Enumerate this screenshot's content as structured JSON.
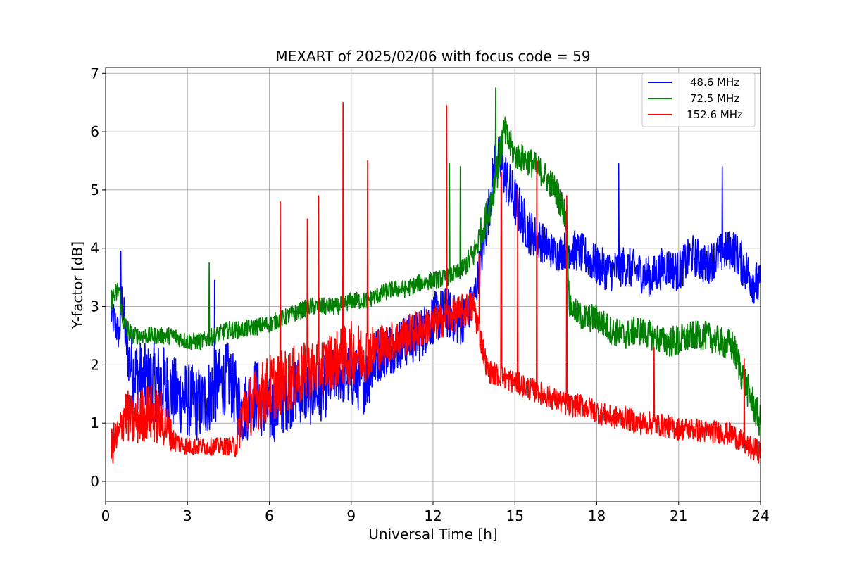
{
  "chart_data": {
    "type": "line",
    "title": "MEXART of 2025/02/06 with focus code = 59",
    "xlabel": "Universal Time [h]",
    "ylabel": "Y-factor [dB]",
    "xlim": [
      0,
      24
    ],
    "ylim": [
      -0.35,
      7.1
    ],
    "xticks": [
      0,
      3,
      6,
      9,
      12,
      15,
      18,
      21,
      24
    ],
    "yticks": [
      0,
      1,
      2,
      3,
      4,
      5,
      6,
      7
    ],
    "grid": true,
    "legend_position": "top-right",
    "series": [
      {
        "name": " 48.6 MHz",
        "color": "#0000ff",
        "x": [
          0.2,
          0.5,
          0.6,
          0.8,
          1.0,
          1.5,
          2.0,
          2.5,
          3.0,
          3.5,
          4.0,
          4.5,
          5.0,
          5.5,
          6.0,
          6.5,
          7.0,
          7.5,
          8.0,
          8.5,
          9.0,
          9.5,
          10.0,
          10.5,
          11.0,
          11.5,
          12.0,
          12.5,
          13.0,
          13.5,
          14.0,
          14.3,
          14.6,
          15.0,
          15.5,
          16.0,
          16.5,
          17.0,
          17.5,
          18.0,
          18.5,
          19.0,
          19.5,
          20.0,
          20.5,
          21.0,
          21.5,
          22.0,
          22.5,
          23.0,
          23.5,
          24.0
        ],
        "y": [
          2.9,
          2.5,
          3.1,
          2.2,
          1.9,
          1.7,
          1.7,
          1.5,
          1.4,
          1.3,
          1.6,
          1.8,
          1.2,
          1.5,
          1.2,
          1.4,
          1.6,
          1.5,
          1.6,
          1.9,
          1.8,
          1.7,
          2.2,
          2.3,
          2.4,
          2.5,
          2.8,
          2.9,
          2.7,
          3.1,
          4.5,
          5.6,
          5.3,
          4.8,
          4.3,
          4.1,
          3.9,
          4.0,
          3.9,
          3.7,
          3.6,
          3.7,
          3.6,
          3.5,
          3.7,
          3.6,
          3.9,
          3.7,
          3.9,
          4.0,
          3.6,
          3.3
        ],
        "noise": [
          0.35,
          0.3,
          0.4,
          0.45,
          0.6,
          0.65,
          0.7,
          0.65,
          0.65,
          0.65,
          0.65,
          0.6,
          0.6,
          0.65,
          0.6,
          0.6,
          0.6,
          0.55,
          0.55,
          0.55,
          0.55,
          0.55,
          0.5,
          0.45,
          0.45,
          0.45,
          0.45,
          0.45,
          0.4,
          0.35,
          0.4,
          0.45,
          0.45,
          0.45,
          0.4,
          0.35,
          0.3,
          0.35,
          0.35,
          0.35,
          0.35,
          0.35,
          0.35,
          0.35,
          0.35,
          0.35,
          0.35,
          0.35,
          0.35,
          0.35,
          0.4,
          0.4
        ]
      },
      {
        "name": " 72.5 MHz",
        "color": "#008000",
        "x": [
          0.2,
          0.5,
          0.6,
          0.8,
          1.0,
          1.5,
          2.0,
          2.5,
          3.0,
          3.5,
          4.0,
          4.5,
          5.0,
          5.5,
          6.0,
          6.5,
          7.0,
          7.5,
          8.0,
          8.5,
          9.0,
          9.5,
          10.0,
          10.5,
          11.0,
          11.5,
          12.0,
          12.5,
          13.0,
          13.5,
          14.0,
          14.3,
          14.6,
          15.0,
          15.5,
          16.0,
          16.5,
          16.9,
          17.0,
          17.5,
          18.0,
          18.5,
          19.0,
          19.5,
          20.0,
          20.5,
          21.0,
          21.5,
          22.0,
          22.5,
          23.0,
          23.5,
          24.0
        ],
        "y": [
          3.1,
          3.3,
          2.8,
          2.6,
          2.5,
          2.5,
          2.5,
          2.5,
          2.4,
          2.4,
          2.5,
          2.6,
          2.6,
          2.65,
          2.7,
          2.8,
          2.9,
          3.0,
          3.0,
          3.0,
          3.1,
          3.1,
          3.2,
          3.3,
          3.3,
          3.4,
          3.45,
          3.5,
          3.6,
          3.9,
          4.6,
          5.2,
          6.0,
          5.6,
          5.5,
          5.3,
          5.0,
          4.5,
          3.0,
          2.8,
          2.8,
          2.6,
          2.5,
          2.6,
          2.5,
          2.4,
          2.4,
          2.5,
          2.5,
          2.4,
          2.3,
          1.6,
          1.0
        ],
        "noise": [
          0.2,
          0.2,
          0.15,
          0.2,
          0.15,
          0.15,
          0.15,
          0.15,
          0.15,
          0.15,
          0.15,
          0.15,
          0.15,
          0.15,
          0.15,
          0.15,
          0.15,
          0.15,
          0.15,
          0.15,
          0.15,
          0.15,
          0.15,
          0.15,
          0.15,
          0.15,
          0.15,
          0.15,
          0.15,
          0.25,
          0.3,
          0.35,
          0.3,
          0.25,
          0.25,
          0.25,
          0.25,
          0.3,
          0.2,
          0.25,
          0.25,
          0.25,
          0.25,
          0.25,
          0.25,
          0.25,
          0.3,
          0.25,
          0.25,
          0.25,
          0.3,
          0.3,
          0.3
        ]
      },
      {
        "name": "152.6 MHz",
        "color": "#ff0000",
        "x": [
          0.2,
          0.5,
          0.7,
          1.0,
          1.5,
          2.0,
          2.3,
          2.5,
          3.0,
          3.5,
          4.0,
          4.5,
          4.8,
          5.0,
          5.5,
          6.0,
          6.5,
          7.0,
          7.5,
          8.0,
          8.5,
          9.0,
          9.5,
          10.0,
          10.5,
          11.0,
          11.5,
          12.0,
          12.5,
          13.0,
          13.5,
          14.0,
          14.5,
          15.0,
          15.5,
          16.0,
          16.5,
          17.0,
          17.5,
          18.0,
          18.5,
          19.0,
          19.5,
          20.0,
          20.5,
          21.0,
          21.5,
          22.0,
          22.5,
          23.0,
          23.5,
          24.0
        ],
        "y": [
          0.6,
          0.8,
          1.2,
          1.0,
          1.2,
          1.1,
          0.9,
          0.7,
          0.6,
          0.6,
          0.6,
          0.6,
          0.6,
          1.2,
          1.4,
          1.6,
          1.7,
          1.8,
          1.9,
          2.0,
          2.1,
          2.2,
          2.2,
          2.3,
          2.4,
          2.5,
          2.6,
          2.7,
          2.8,
          2.9,
          3.0,
          1.9,
          1.8,
          1.7,
          1.6,
          1.5,
          1.4,
          1.3,
          1.3,
          1.2,
          1.1,
          1.1,
          1.0,
          1.0,
          0.95,
          0.9,
          0.9,
          0.85,
          0.85,
          0.8,
          0.6,
          0.5
        ],
        "noise": [
          0.35,
          0.35,
          0.45,
          0.45,
          0.5,
          0.5,
          0.35,
          0.2,
          0.15,
          0.15,
          0.15,
          0.15,
          0.2,
          0.5,
          0.55,
          0.6,
          0.55,
          0.55,
          0.5,
          0.5,
          0.5,
          0.55,
          0.5,
          0.4,
          0.35,
          0.35,
          0.35,
          0.3,
          0.3,
          0.3,
          0.3,
          0.2,
          0.2,
          0.2,
          0.2,
          0.2,
          0.2,
          0.2,
          0.2,
          0.2,
          0.2,
          0.2,
          0.2,
          0.2,
          0.2,
          0.2,
          0.2,
          0.2,
          0.2,
          0.2,
          0.2,
          0.2
        ]
      }
    ],
    "spikes": [
      {
        "series": 2,
        "x": 6.4,
        "y": 4.8
      },
      {
        "series": 2,
        "x": 7.4,
        "y": 4.5
      },
      {
        "series": 2,
        "x": 7.8,
        "y": 4.9
      },
      {
        "series": 2,
        "x": 8.7,
        "y": 6.5
      },
      {
        "series": 2,
        "x": 9.6,
        "y": 5.5
      },
      {
        "series": 2,
        "x": 12.5,
        "y": 6.45
      },
      {
        "series": 2,
        "x": 13.7,
        "y": 3.9
      },
      {
        "series": 2,
        "x": 14.5,
        "y": 5.3
      },
      {
        "series": 2,
        "x": 15.1,
        "y": 5.0
      },
      {
        "series": 2,
        "x": 15.8,
        "y": 5.5
      },
      {
        "series": 2,
        "x": 16.9,
        "y": 4.9
      },
      {
        "series": 2,
        "x": 20.1,
        "y": 2.3
      },
      {
        "series": 2,
        "x": 23.4,
        "y": 2.1
      },
      {
        "series": 1,
        "x": 3.8,
        "y": 3.75
      },
      {
        "series": 1,
        "x": 12.6,
        "y": 5.45
      },
      {
        "series": 1,
        "x": 13.0,
        "y": 5.4
      },
      {
        "series": 1,
        "x": 14.3,
        "y": 6.75
      },
      {
        "series": 0,
        "x": 0.55,
        "y": 3.95
      },
      {
        "series": 0,
        "x": 4.0,
        "y": 3.45
      },
      {
        "series": 0,
        "x": 18.8,
        "y": 5.45
      },
      {
        "series": 0,
        "x": 22.6,
        "y": 5.4
      }
    ]
  }
}
